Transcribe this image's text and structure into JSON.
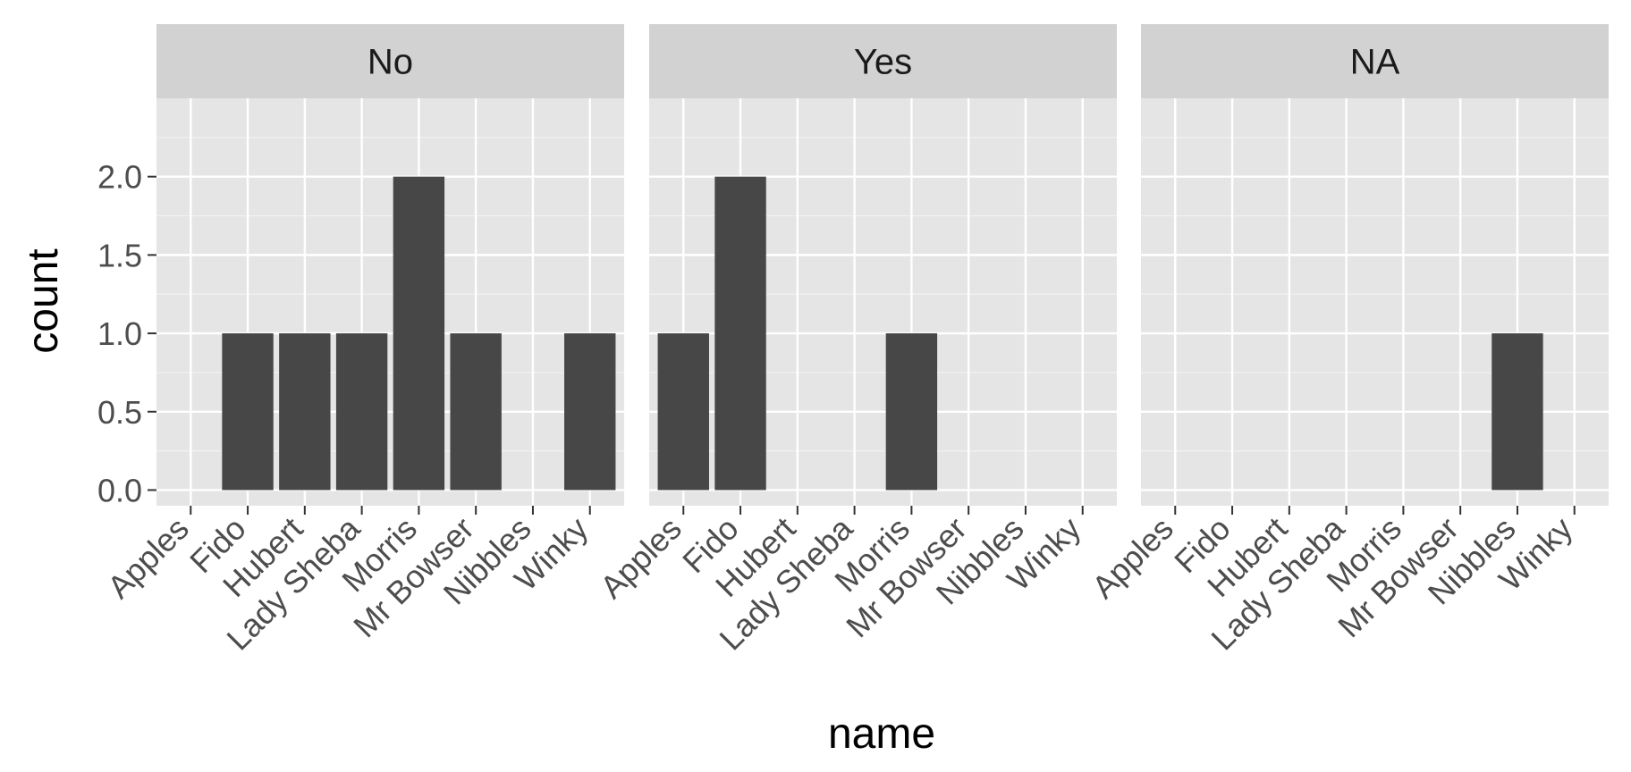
{
  "chart_data": {
    "type": "bar",
    "xlabel": "name",
    "ylabel": "count",
    "ylim": [
      -0.1,
      2.5
    ],
    "yticks": [
      0.0,
      0.5,
      1.0,
      1.5,
      2.0
    ],
    "ytick_labels": [
      "0.0",
      "0.5",
      "1.0",
      "1.5",
      "2.0"
    ],
    "grid": true,
    "facet_layout": "1 row, 3 columns",
    "categories": [
      "Apples",
      "Fido",
      "Hubert",
      "Lady Sheba",
      "Morris",
      "Mr Bowser",
      "Nibbles",
      "Winky"
    ],
    "panels": [
      {
        "label": "No",
        "values": [
          0,
          1,
          1,
          1,
          2,
          1,
          0,
          1
        ]
      },
      {
        "label": "Yes",
        "values": [
          1,
          2,
          0,
          0,
          1,
          0,
          0,
          0
        ]
      },
      {
        "label": "NA",
        "values": [
          0,
          0,
          0,
          0,
          0,
          0,
          1,
          0
        ]
      }
    ],
    "colors": {
      "bar": "#474747",
      "panel_bg": "#e5e5e5",
      "strip_bg": "#d2d2d2",
      "grid_major": "#ffffff",
      "grid_minor": "#f2f2f2",
      "tick_text": "#4d4d4d",
      "title_text": "#000000"
    }
  }
}
